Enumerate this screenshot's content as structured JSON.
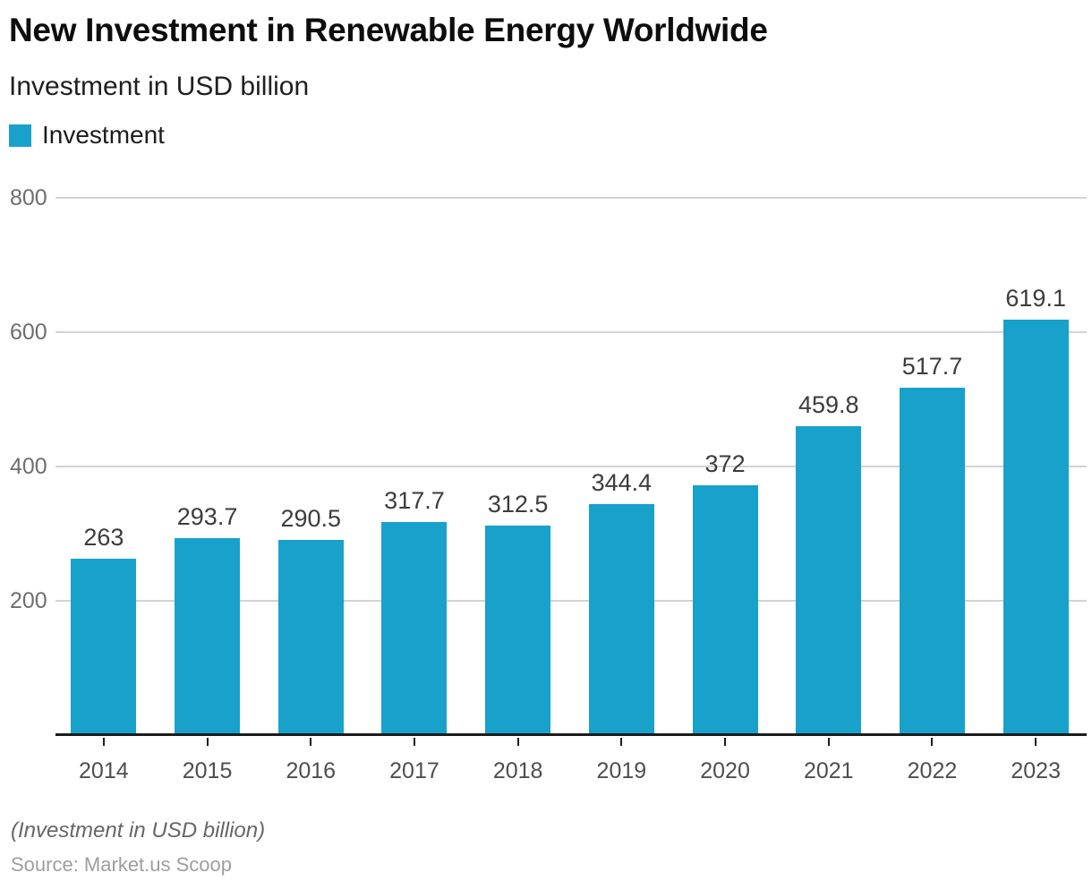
{
  "header": {
    "title": "New Investment in Renewable Energy Worldwide",
    "subtitle": "Investment in USD billion"
  },
  "legend": {
    "label": "Investment",
    "swatch_color": "#18a1cb"
  },
  "footer": {
    "note": "(Investment in USD billion)",
    "source": "Source: Market.us Scoop"
  },
  "colors": {
    "bar": "#18a1cb",
    "gridline": "#d3d3d3",
    "axis_line": "#1c1c1c"
  },
  "chart_data": {
    "type": "bar",
    "title": "New Investment in Renewable Energy Worldwide",
    "subtitle": "Investment in USD billion",
    "xlabel": "",
    "ylabel": "Investment in USD billion",
    "categories": [
      "2014",
      "2015",
      "2016",
      "2017",
      "2018",
      "2019",
      "2020",
      "2021",
      "2022",
      "2023"
    ],
    "series": [
      {
        "name": "Investment",
        "values": [
          263,
          293.7,
          290.5,
          317.7,
          312.5,
          344.4,
          372,
          459.8,
          517.7,
          619.1
        ]
      }
    ],
    "value_labels": [
      "263",
      "293.7",
      "290.5",
      "317.7",
      "312.5",
      "344.4",
      "372",
      "459.8",
      "517.7",
      "619.1"
    ],
    "ylim": [
      0,
      800
    ],
    "yticks": [
      200,
      400,
      600,
      800
    ],
    "grid": true,
    "legend_position": "top-left",
    "bar_color": "#18a1cb"
  }
}
